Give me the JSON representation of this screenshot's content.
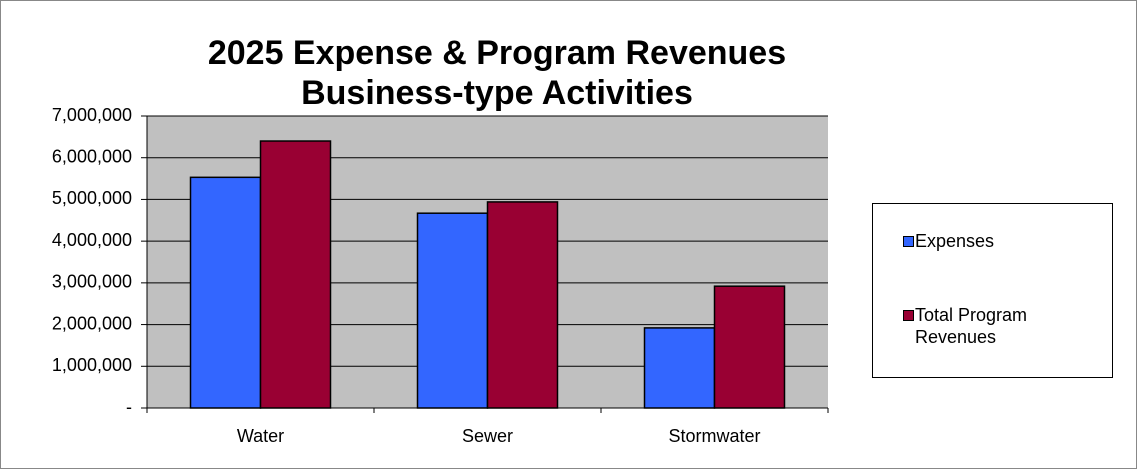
{
  "chart_data": {
    "type": "bar",
    "title": "2025 Expense & Program Revenues",
    "subtitle": "Business-type Activities",
    "categories": [
      "Water",
      "Sewer",
      "Stormwater"
    ],
    "series": [
      {
        "name": "Expenses",
        "color": "#3366ff",
        "values": [
          5530000,
          4670000,
          1920000
        ]
      },
      {
        "name": "Total Program Revenues",
        "color": "#990033",
        "values": [
          6400000,
          4940000,
          2920000
        ]
      }
    ],
    "ylim": [
      0,
      7000000
    ],
    "yticks": [
      {
        "value": 0,
        "label": "-"
      },
      {
        "value": 1000000,
        "label": "1,000,000"
      },
      {
        "value": 2000000,
        "label": "2,000,000"
      },
      {
        "value": 3000000,
        "label": "3,000,000"
      },
      {
        "value": 4000000,
        "label": "4,000,000"
      },
      {
        "value": 5000000,
        "label": "5,000,000"
      },
      {
        "value": 6000000,
        "label": "6,000,000"
      },
      {
        "value": 7000000,
        "label": "7,000,000"
      }
    ],
    "grid": true,
    "legend": "right"
  }
}
